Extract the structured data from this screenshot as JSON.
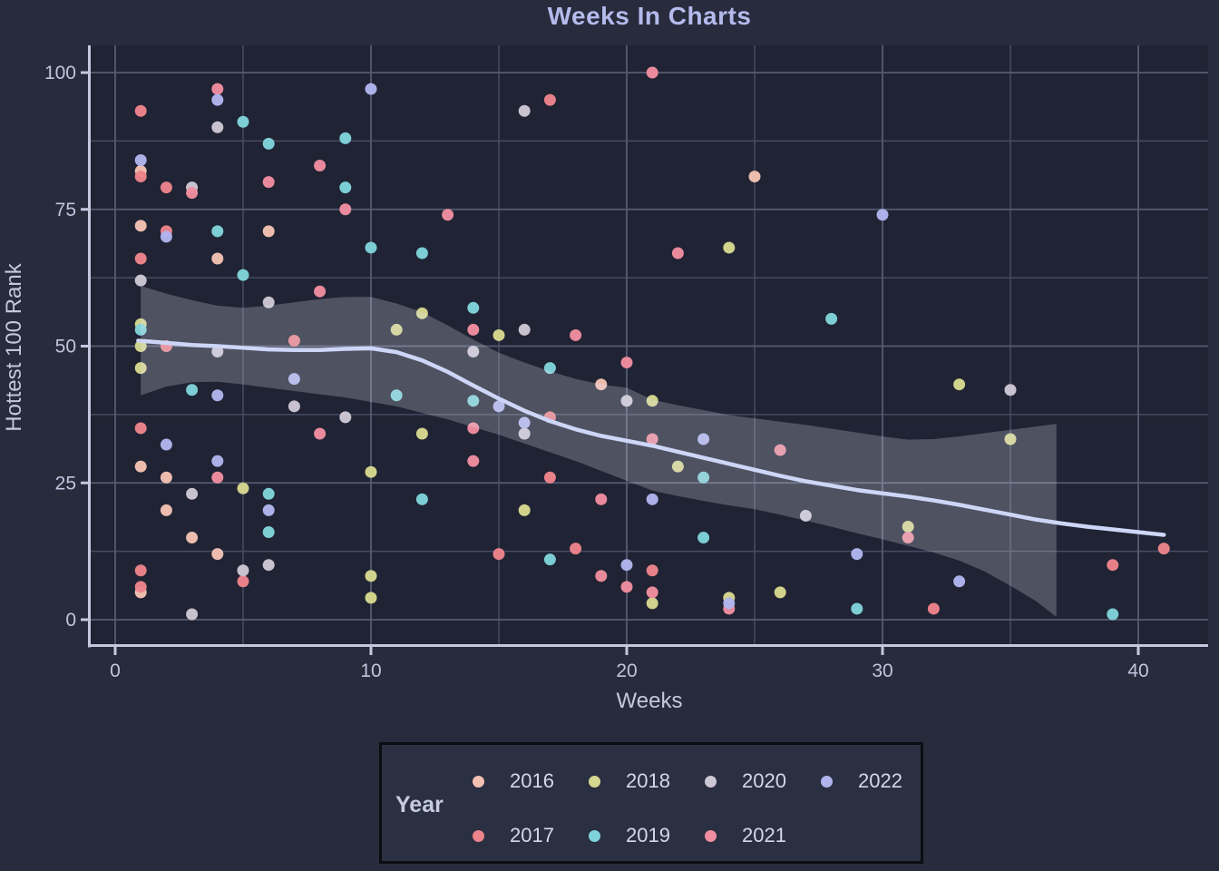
{
  "page": {
    "background": "#272b3c"
  },
  "chart_data": {
    "type": "scatter",
    "title": "Weeks In Charts",
    "xlabel": "Weeks",
    "ylabel": "Hottest 100 Rank",
    "x_ticks": [
      0,
      10,
      20,
      30,
      40
    ],
    "x_minor": [
      5,
      15,
      25,
      35
    ],
    "y_ticks": [
      0,
      25,
      50,
      75,
      100
    ],
    "y_minor": [
      12.5,
      37.5,
      62.5,
      87.5
    ],
    "xlim": [
      -1,
      42.7
    ],
    "ylim": [
      -5,
      105
    ],
    "grid": "on",
    "legend_position": "bottom",
    "colors": {
      "panel": "#1f2333",
      "grid_major": "#555b73",
      "grid_minor": "#464c62",
      "axis": "#c3c8de",
      "trend_line": "#cdd6f7",
      "trend_band": "rgba(231,235,247,0.24)",
      "title": "#b4baec"
    },
    "series": [
      {
        "name": "2016",
        "color": "#f3c1b4",
        "points": [
          [
            1,
            82
          ],
          [
            1,
            72
          ],
          [
            6,
            71
          ],
          [
            4,
            66
          ],
          [
            25,
            81
          ],
          [
            19,
            43
          ],
          [
            1,
            28
          ],
          [
            2,
            26
          ],
          [
            2,
            20
          ],
          [
            3,
            15
          ],
          [
            4,
            12
          ],
          [
            1,
            5
          ]
        ]
      },
      {
        "name": "2017",
        "color": "#ed838b",
        "points": [
          [
            1,
            93
          ],
          [
            1,
            81
          ],
          [
            2,
            79
          ],
          [
            2,
            71
          ],
          [
            1,
            66
          ],
          [
            17,
            95
          ],
          [
            7,
            51
          ],
          [
            2,
            50
          ],
          [
            17,
            37
          ],
          [
            1,
            35
          ],
          [
            17,
            26
          ],
          [
            18,
            13
          ],
          [
            15,
            12
          ],
          [
            1,
            9
          ],
          [
            5,
            7
          ],
          [
            1,
            6
          ],
          [
            21,
            9
          ],
          [
            32,
            2
          ],
          [
            39,
            10
          ],
          [
            41,
            13
          ]
        ]
      },
      {
        "name": "2018",
        "color": "#d7d88f",
        "points": [
          [
            1,
            54
          ],
          [
            1,
            50
          ],
          [
            1,
            46
          ],
          [
            12,
            56
          ],
          [
            11,
            53
          ],
          [
            15,
            52
          ],
          [
            12,
            34
          ],
          [
            10,
            27
          ],
          [
            5,
            24
          ],
          [
            16,
            20
          ],
          [
            10,
            8
          ],
          [
            10,
            4
          ],
          [
            24,
            68
          ],
          [
            21,
            40
          ],
          [
            22,
            28
          ],
          [
            26,
            5
          ],
          [
            24,
            4
          ],
          [
            21,
            3
          ],
          [
            31,
            17
          ],
          [
            33,
            43
          ],
          [
            35,
            33
          ]
        ]
      },
      {
        "name": "2019",
        "color": "#80d3da",
        "points": [
          [
            5,
            91
          ],
          [
            9,
            88
          ],
          [
            6,
            87
          ],
          [
            9,
            79
          ],
          [
            4,
            71
          ],
          [
            10,
            68
          ],
          [
            5,
            63
          ],
          [
            12,
            67
          ],
          [
            14,
            57
          ],
          [
            1,
            53
          ],
          [
            3,
            42
          ],
          [
            11,
            41
          ],
          [
            14,
            40
          ],
          [
            17,
            46
          ],
          [
            6,
            23
          ],
          [
            12,
            22
          ],
          [
            6,
            16
          ],
          [
            17,
            11
          ],
          [
            28,
            55
          ],
          [
            23,
            26
          ],
          [
            23,
            15
          ],
          [
            29,
            2
          ],
          [
            39,
            1
          ]
        ]
      },
      {
        "name": "2020",
        "color": "#cdc7d5",
        "points": [
          [
            4,
            90
          ],
          [
            3,
            79
          ],
          [
            16,
            93
          ],
          [
            1,
            62
          ],
          [
            6,
            58
          ],
          [
            4,
            49
          ],
          [
            16,
            53
          ],
          [
            14,
            49
          ],
          [
            7,
            39
          ],
          [
            9,
            37
          ],
          [
            16,
            34
          ],
          [
            20,
            40
          ],
          [
            3,
            23
          ],
          [
            27,
            19
          ],
          [
            6,
            10
          ],
          [
            5,
            9
          ],
          [
            3,
            1
          ],
          [
            35,
            42
          ]
        ]
      },
      {
        "name": "2021",
        "color": "#f08da0",
        "points": [
          [
            4,
            97
          ],
          [
            3,
            78
          ],
          [
            8,
            83
          ],
          [
            6,
            80
          ],
          [
            9,
            75
          ],
          [
            13,
            74
          ],
          [
            21,
            100
          ],
          [
            22,
            67
          ],
          [
            8,
            60
          ],
          [
            14,
            53
          ],
          [
            18,
            52
          ],
          [
            20,
            47
          ],
          [
            8,
            34
          ],
          [
            14,
            35
          ],
          [
            14,
            29
          ],
          [
            4,
            26
          ],
          [
            19,
            22
          ],
          [
            21,
            33
          ],
          [
            26,
            31
          ],
          [
            31,
            15
          ],
          [
            19,
            8
          ],
          [
            20,
            6
          ],
          [
            21,
            5
          ],
          [
            24,
            2
          ]
        ]
      },
      {
        "name": "2022",
        "color": "#b1b5ee",
        "points": [
          [
            4,
            95
          ],
          [
            10,
            97
          ],
          [
            1,
            84
          ],
          [
            2,
            70
          ],
          [
            30,
            74
          ],
          [
            7,
            44
          ],
          [
            4,
            41
          ],
          [
            2,
            32
          ],
          [
            4,
            29
          ],
          [
            6,
            20
          ],
          [
            15,
            39
          ],
          [
            16,
            36
          ],
          [
            21,
            22
          ],
          [
            23,
            33
          ],
          [
            20,
            10
          ],
          [
            29,
            12
          ],
          [
            24,
            3
          ],
          [
            33,
            7
          ]
        ]
      }
    ],
    "trend": {
      "line": [
        [
          0.9,
          51
        ],
        [
          2,
          50.6
        ],
        [
          3,
          50.2
        ],
        [
          4,
          50
        ],
        [
          5,
          49.7
        ],
        [
          6,
          49.4
        ],
        [
          7,
          49.3
        ],
        [
          8,
          49.3
        ],
        [
          9,
          49.5
        ],
        [
          10,
          49.6
        ],
        [
          11,
          48.9
        ],
        [
          12,
          47.4
        ],
        [
          13,
          45.3
        ],
        [
          14,
          42.8
        ],
        [
          15,
          40.4
        ],
        [
          16,
          38.2
        ],
        [
          17,
          36.3
        ],
        [
          18,
          34.8
        ],
        [
          19,
          33.6
        ],
        [
          20,
          32.7
        ],
        [
          21,
          31.8
        ],
        [
          22,
          30.7
        ],
        [
          23,
          29.6
        ],
        [
          24,
          28.5
        ],
        [
          25,
          27.4
        ],
        [
          26,
          26.3
        ],
        [
          27,
          25.3
        ],
        [
          28,
          24.5
        ],
        [
          29,
          23.7
        ],
        [
          30,
          23.1
        ],
        [
          31,
          22.5
        ],
        [
          32,
          21.8
        ],
        [
          33,
          21
        ],
        [
          34,
          20.1
        ],
        [
          35,
          19.2
        ],
        [
          36,
          18.3
        ],
        [
          37,
          17.6
        ],
        [
          38,
          17
        ],
        [
          39,
          16.5
        ],
        [
          40,
          16
        ],
        [
          41,
          15.5
        ]
      ],
      "band_upper": [
        [
          1,
          61
        ],
        [
          2,
          59.6
        ],
        [
          3,
          58.4
        ],
        [
          4,
          57.4
        ],
        [
          5,
          57
        ],
        [
          6,
          57.4
        ],
        [
          7,
          58
        ],
        [
          8,
          58.6
        ],
        [
          9,
          59
        ],
        [
          10,
          59
        ],
        [
          11,
          57.8
        ],
        [
          12,
          56.2
        ],
        [
          13,
          53.8
        ],
        [
          14,
          51.2
        ],
        [
          15,
          48.8
        ],
        [
          16,
          47
        ],
        [
          17,
          45.4
        ],
        [
          18,
          44
        ],
        [
          19,
          43
        ],
        [
          20,
          42.4
        ],
        [
          21,
          40.2
        ],
        [
          22,
          39.2
        ],
        [
          23,
          38.3
        ],
        [
          24,
          37.4
        ],
        [
          25,
          36.8
        ],
        [
          26,
          36.2
        ],
        [
          27,
          35.6
        ],
        [
          28,
          34.9
        ],
        [
          29,
          34.2
        ],
        [
          30,
          33.5
        ],
        [
          31,
          32.9
        ],
        [
          32,
          33
        ],
        [
          33,
          33.5
        ],
        [
          34,
          34.1
        ],
        [
          35,
          34.7
        ],
        [
          36,
          35.3
        ],
        [
          36.8,
          35.8
        ]
      ],
      "band_lower": [
        [
          1,
          41
        ],
        [
          2,
          42.6
        ],
        [
          3,
          43.4
        ],
        [
          4,
          43.5
        ],
        [
          5,
          43
        ],
        [
          6,
          42.4
        ],
        [
          7,
          41.8
        ],
        [
          8,
          41.2
        ],
        [
          9,
          40.6
        ],
        [
          10,
          39.8
        ],
        [
          11,
          39
        ],
        [
          12,
          37.8
        ],
        [
          13,
          36.6
        ],
        [
          14,
          35.2
        ],
        [
          15,
          33.8
        ],
        [
          16,
          32.2
        ],
        [
          17,
          30.6
        ],
        [
          18,
          29
        ],
        [
          19,
          27.2
        ],
        [
          20,
          25.4
        ],
        [
          21,
          23.6
        ],
        [
          22,
          22.6
        ],
        [
          23,
          21.7
        ],
        [
          24,
          20.9
        ],
        [
          25,
          20.2
        ],
        [
          26,
          19.2
        ],
        [
          27,
          18.1
        ],
        [
          28,
          17
        ],
        [
          29,
          15.8
        ],
        [
          30,
          14.7
        ],
        [
          31,
          13.5
        ],
        [
          32,
          12.3
        ],
        [
          33,
          10.8
        ],
        [
          34,
          8.8
        ],
        [
          35,
          6.2
        ],
        [
          36,
          3.4
        ],
        [
          36.8,
          0.5
        ]
      ]
    }
  },
  "legend": {
    "title": "Year",
    "entries": [
      {
        "label": "2016",
        "color": "#f3c1b4"
      },
      {
        "label": "2017",
        "color": "#ed838b"
      },
      {
        "label": "2018",
        "color": "#d7d88f"
      },
      {
        "label": "2019",
        "color": "#80d3da"
      },
      {
        "label": "2020",
        "color": "#cdc7d5"
      },
      {
        "label": "2021",
        "color": "#f08da0"
      },
      {
        "label": "2022",
        "color": "#b1b5ee"
      }
    ]
  }
}
